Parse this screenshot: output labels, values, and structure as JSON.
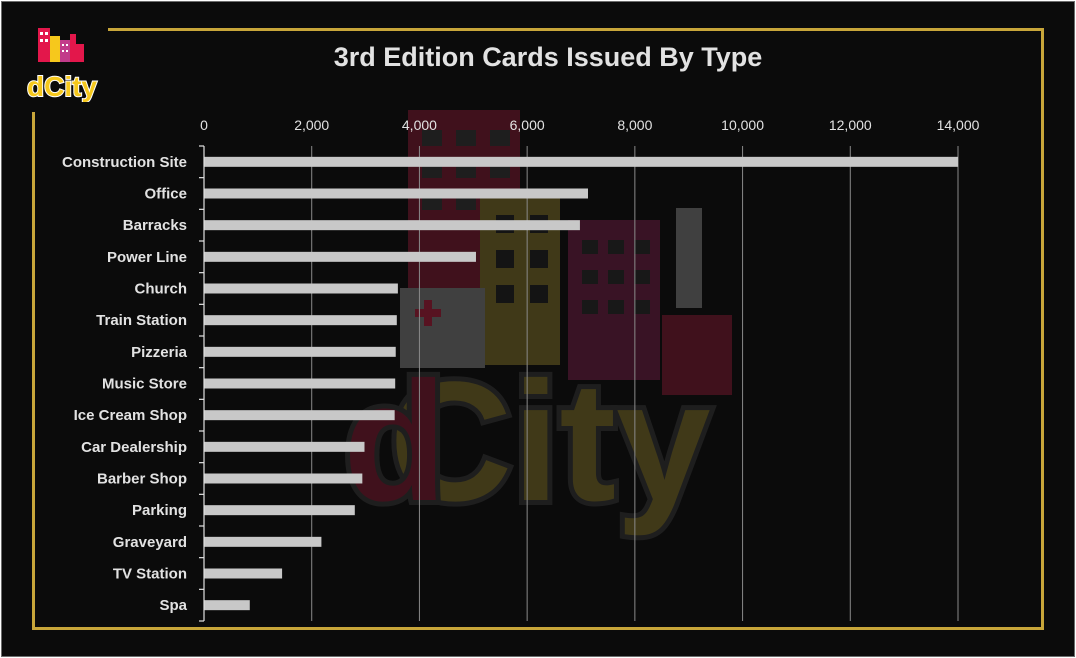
{
  "logo": {
    "text": "dCity",
    "colors": {
      "red": "#e3174b",
      "yellow": "#f6c81c",
      "pink": "#c23b8a"
    }
  },
  "chart_data": {
    "type": "bar",
    "orientation": "horizontal",
    "title": "3rd Edition Cards Issued By Type",
    "categories": [
      "Construction Site",
      "Office",
      "Barracks",
      "Power Line",
      "Church",
      "Train Station",
      "Pizzeria",
      "Music Store",
      "Ice Cream Shop",
      "Car Dealership",
      "Barber Shop",
      "Parking",
      "Graveyard",
      "TV Station",
      "Spa"
    ],
    "values": [
      14000,
      7130,
      6980,
      5050,
      3600,
      3580,
      3560,
      3550,
      3540,
      2980,
      2940,
      2800,
      2180,
      1450,
      850
    ],
    "xlim": [
      0,
      14000
    ],
    "xticks": [
      0,
      2000,
      4000,
      6000,
      8000,
      10000,
      12000,
      14000
    ],
    "xtick_labels": [
      "0",
      "2,000",
      "4,000",
      "6,000",
      "8,000",
      "10,000",
      "12,000",
      "14,000"
    ],
    "x_axis_position": "top",
    "grid": true,
    "bar_color": "#c8c8c8",
    "grid_color": "#8a8a8a",
    "text_color": "#e2e2e2"
  }
}
